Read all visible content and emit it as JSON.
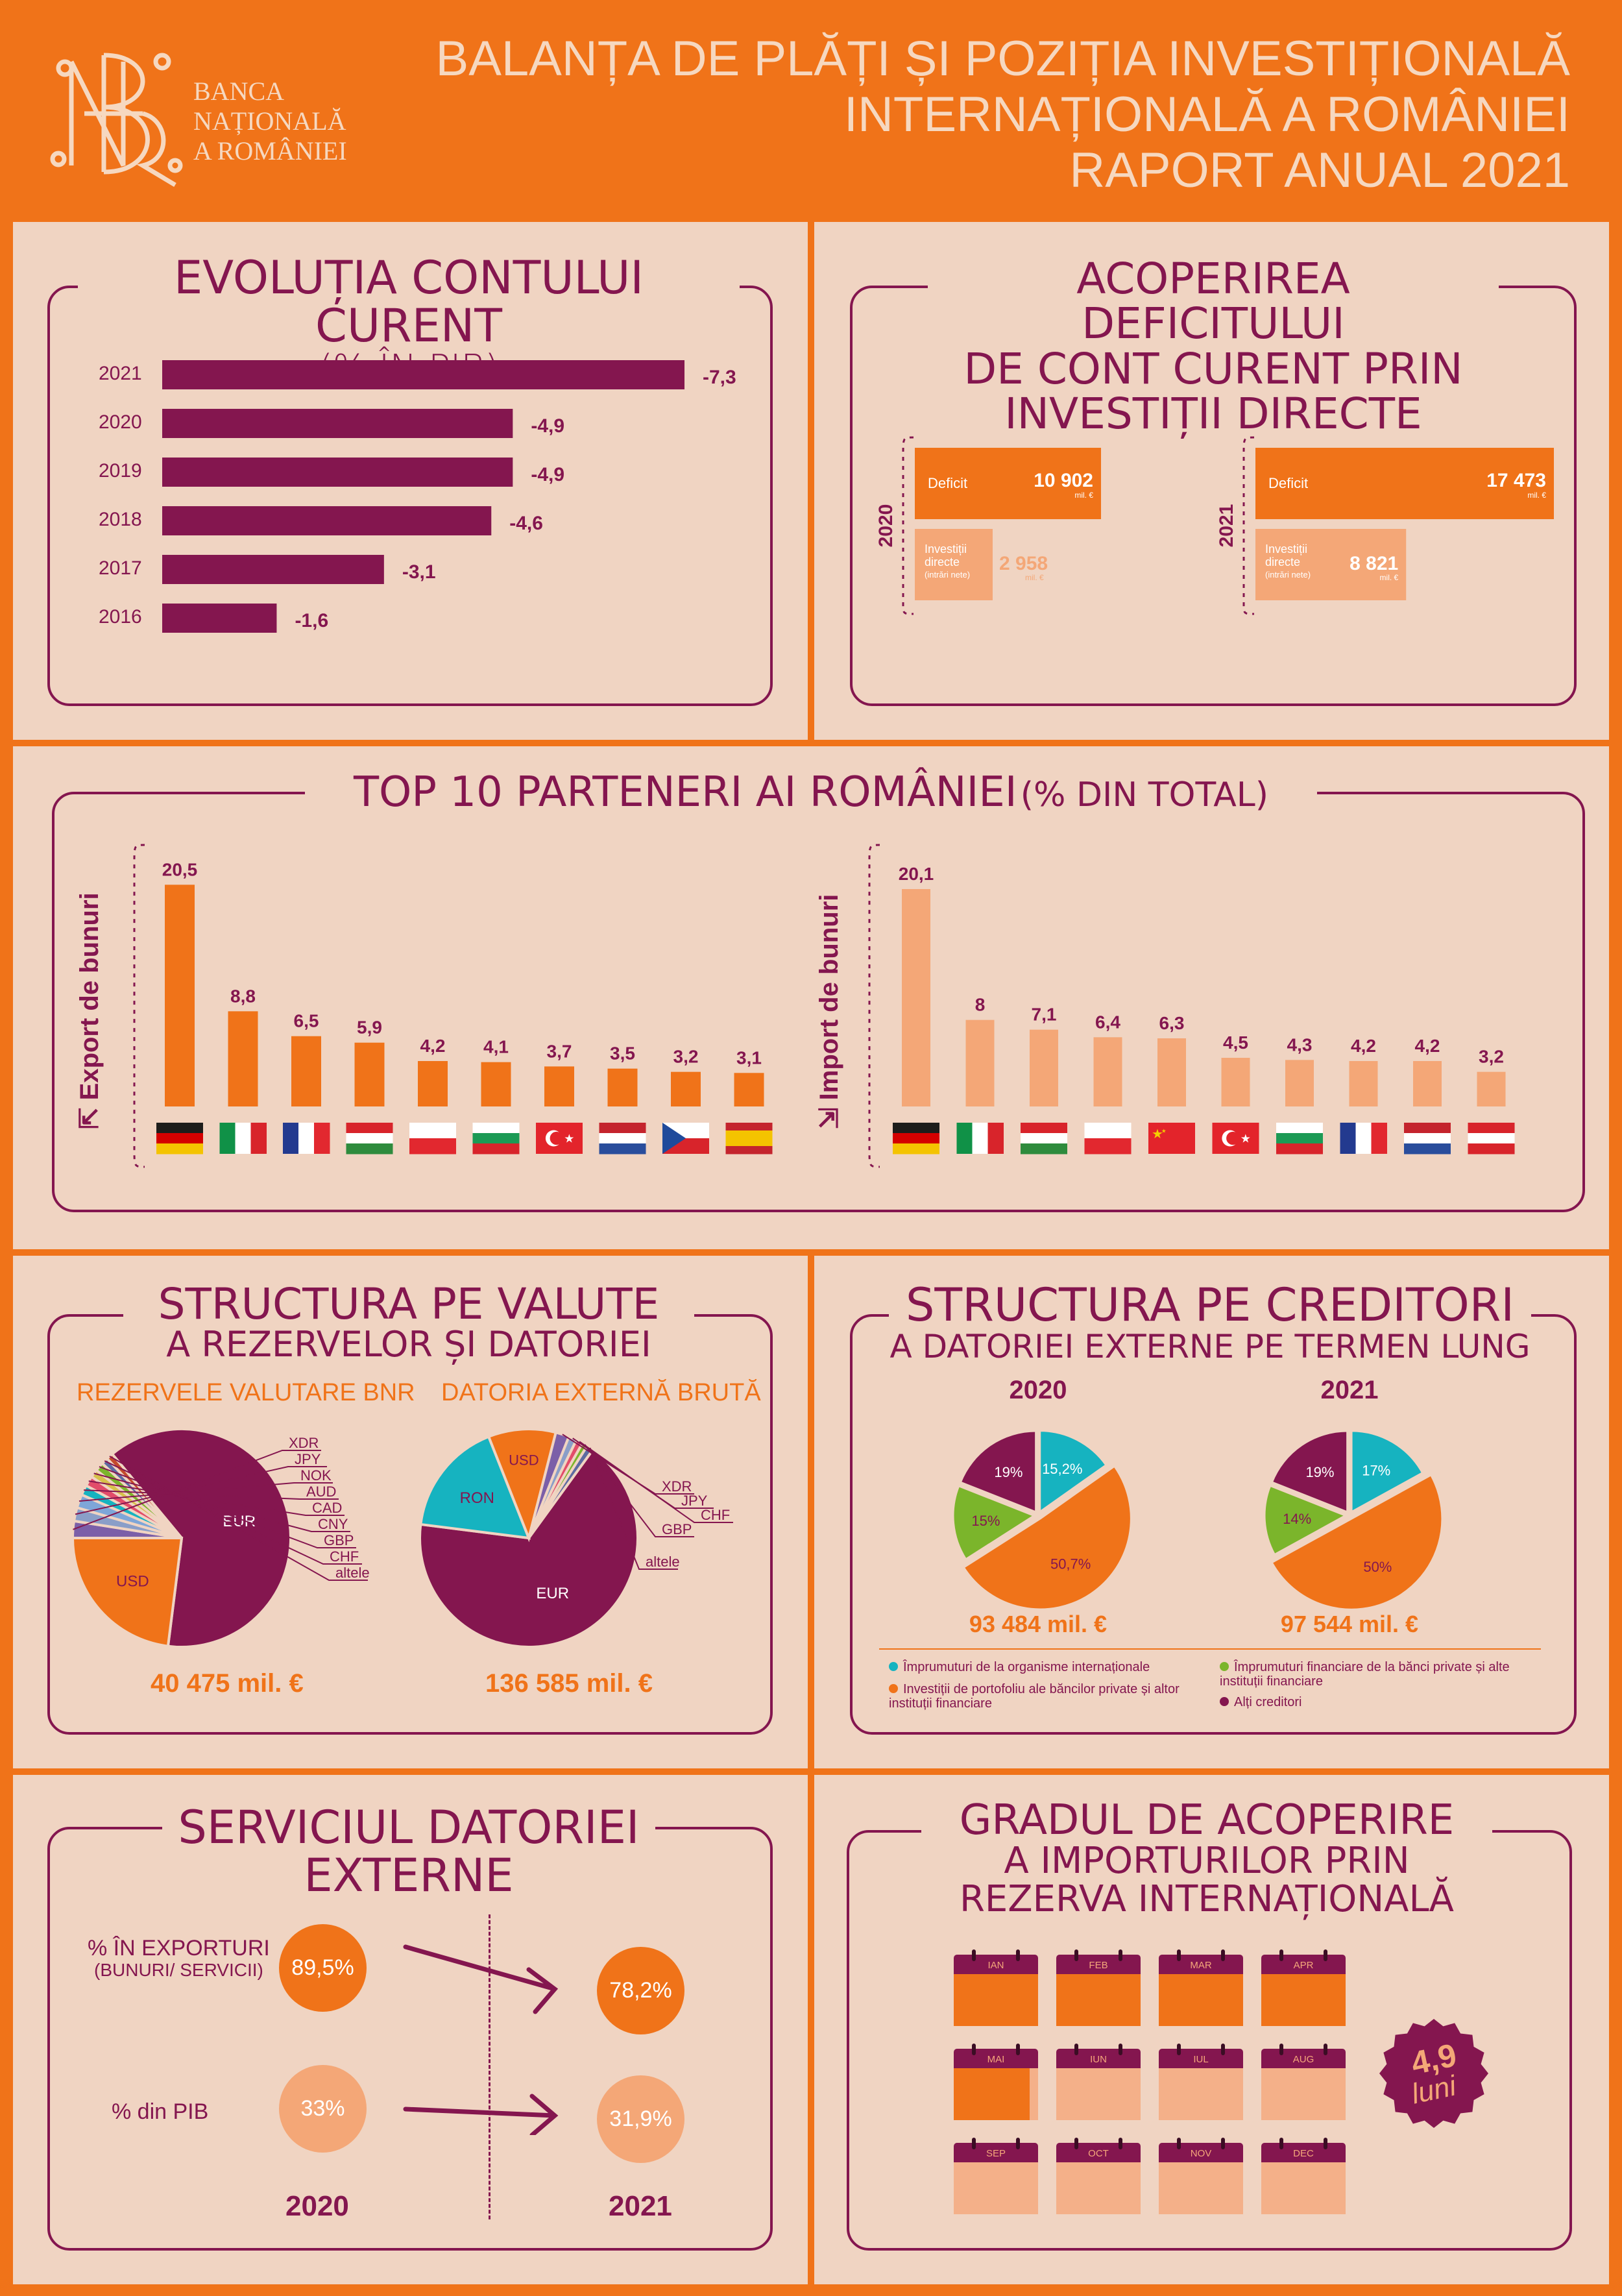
{
  "header": {
    "bank_line1": "BANCA",
    "bank_line2": "NAȚIONALĂ",
    "bank_line3": "A ROMÂNIEI",
    "title_line1": "BALANȚA DE PLĂȚI ȘI POZIȚIA INVESTIȚIONALĂ",
    "title_line2": "INTERNAȚIONALĂ A ROMÂNIEI",
    "title_line3": "RAPORT ANUAL 2021"
  },
  "colors": {
    "plum": "#84164f",
    "orange": "#f07319",
    "light_orange": "#f4a777",
    "teal": "#16b3c0",
    "green": "#7bb52b",
    "panel": "#f0d4c2"
  },
  "current_account": {
    "title": "EVOLUȚIA CONTULUI CURENT",
    "subtitle": "(% ÎN PIB)",
    "chart_data": {
      "type": "bar",
      "categories": [
        "2021",
        "2020",
        "2019",
        "2018",
        "2017",
        "2016"
      ],
      "values": [
        -7.3,
        -4.9,
        -4.9,
        -4.6,
        -3.1,
        -1.6
      ],
      "labels": [
        "-7,3",
        "-4,9",
        "-4,9",
        "-4,6",
        "-3,1",
        "-1,6"
      ]
    }
  },
  "coverage": {
    "title_line1": "ACOPERIREA DEFICITULUI",
    "title_line2": "DE CONT CURENT PRIN",
    "title_line3": "INVESTIȚII DIRECTE",
    "deficit_label": "Deficit",
    "fdi_label1": "Investiții",
    "fdi_label2": "directe",
    "fdi_label3": "(intrări nete)",
    "unit": "mil. €",
    "chart_data": {
      "type": "bar",
      "series": [
        {
          "year": "2020",
          "deficit": 10902,
          "fdi": 2958,
          "deficit_label": "10 902",
          "fdi_label": "2 958"
        },
        {
          "year": "2021",
          "deficit": 17473,
          "fdi": 8821,
          "deficit_label": "17 473",
          "fdi_label": "8 821"
        }
      ]
    }
  },
  "partners": {
    "title": "TOP 10 PARTENERI AI ROMÂNIEI",
    "title_suffix": "(% DIN TOTAL)",
    "export_label": "Export de bunuri",
    "import_label": "Import de bunuri",
    "chart_data": [
      {
        "type": "bar",
        "name": "Export de bunuri",
        "categories": [
          "DE",
          "IT",
          "FR",
          "HU",
          "PL",
          "BG",
          "TR",
          "NL",
          "CZ",
          "ES"
        ],
        "values": [
          20.5,
          8.8,
          6.5,
          5.9,
          4.2,
          4.1,
          3.7,
          3.5,
          3.2,
          3.1
        ],
        "labels": [
          "20,5",
          "8,8",
          "6,5",
          "5,9",
          "4,2",
          "4,1",
          "3,7",
          "3,5",
          "3,2",
          "3,1"
        ]
      },
      {
        "type": "bar",
        "name": "Import de bunuri",
        "categories": [
          "DE",
          "IT",
          "HU",
          "PL",
          "CN",
          "TR",
          "BG",
          "FR",
          "NL",
          "AT"
        ],
        "values": [
          20.1,
          8,
          7.1,
          6.4,
          6.3,
          4.5,
          4.3,
          4.2,
          4.2,
          3.2
        ],
        "labels": [
          "20,1",
          "8",
          "7,1",
          "6,4",
          "6,3",
          "4,5",
          "4,3",
          "4,2",
          "4,2",
          "3,2"
        ]
      }
    ]
  },
  "currency": {
    "title_line1": "STRUCTURA PE VALUTE",
    "title_line2": "A REZERVELOR ȘI DATORIEI",
    "reserves_label": "REZERVELE VALUTARE BNR",
    "debt_label": "DATORIA EXTERNĂ BRUTĂ",
    "reserves_total": "40 475 mil. €",
    "debt_total": "136 585 mil. €",
    "chart_data": [
      {
        "type": "pie",
        "name": "REZERVELE VALUTARE BNR",
        "categories": [
          "EUR",
          "USD",
          "XDR",
          "JPY",
          "NOK",
          "AUD",
          "CAD",
          "CNY",
          "GBP",
          "CHF",
          "altele"
        ],
        "values": [
          63,
          23,
          2.5,
          2,
          2,
          1.5,
          1.5,
          1.2,
          1.3,
          1,
          1
        ]
      },
      {
        "type": "pie",
        "name": "DATORIA EXTERNĂ BRUTĂ",
        "categories": [
          "EUR",
          "RON",
          "USD",
          "XDR",
          "JPY",
          "CHF",
          "GBP",
          "altele"
        ],
        "values": [
          67,
          17,
          10,
          2,
          1.2,
          1,
          0.8,
          1
        ]
      }
    ]
  },
  "creditors": {
    "title_line1": "STRUCTURA PE CREDITORI",
    "title_line2": "A DATORIEI EXTERNE PE TERMEN LUNG",
    "legend": [
      "Împrumuturi de la organisme internaționale",
      "Împrumuturi financiare de la bănci private și alte instituții financiare",
      "Investiții de portofoliu ale băncilor private și altor instituții financiare",
      "Alți creditori"
    ],
    "chart_data": [
      {
        "type": "pie",
        "name": "2020",
        "total": "93 484 mil. €",
        "values": [
          15.2,
          50.7,
          15,
          19
        ],
        "labels": [
          "15,2%",
          "50,7%",
          "15%",
          "19%"
        ]
      },
      {
        "type": "pie",
        "name": "2021",
        "total": "97 544 mil. €",
        "values": [
          17,
          50,
          14,
          19
        ],
        "labels": [
          "17%",
          "50%",
          "14%",
          "19%"
        ]
      }
    ]
  },
  "debt_service": {
    "title_line1": "SERVICIUL DATORIEI",
    "title_line2": "EXTERNE",
    "row1_label": "% ÎN EXPORTURI",
    "row1_sublabel": "(BUNURI/ SERVICII)",
    "row2_label": "% din PIB",
    "row1_2020": "89,5%",
    "row1_2021": "78,2%",
    "row2_2020": "33%",
    "row2_2021": "31,9%",
    "year1": "2020",
    "year2": "2021"
  },
  "import_cover": {
    "title_line1": "GRADUL DE ACOPERIRE",
    "title_line2": "A IMPORTURILOR PRIN",
    "title_line3": "REZERVA INTERNAȚIONALĂ",
    "months": [
      "IAN",
      "FEB",
      "MAR",
      "APR",
      "MAI",
      "IUN",
      "IUL",
      "AUG",
      "SEP",
      "OCT",
      "NOV",
      "DEC"
    ],
    "value": 4.9,
    "value_label": "4,9",
    "unit": "luni"
  }
}
